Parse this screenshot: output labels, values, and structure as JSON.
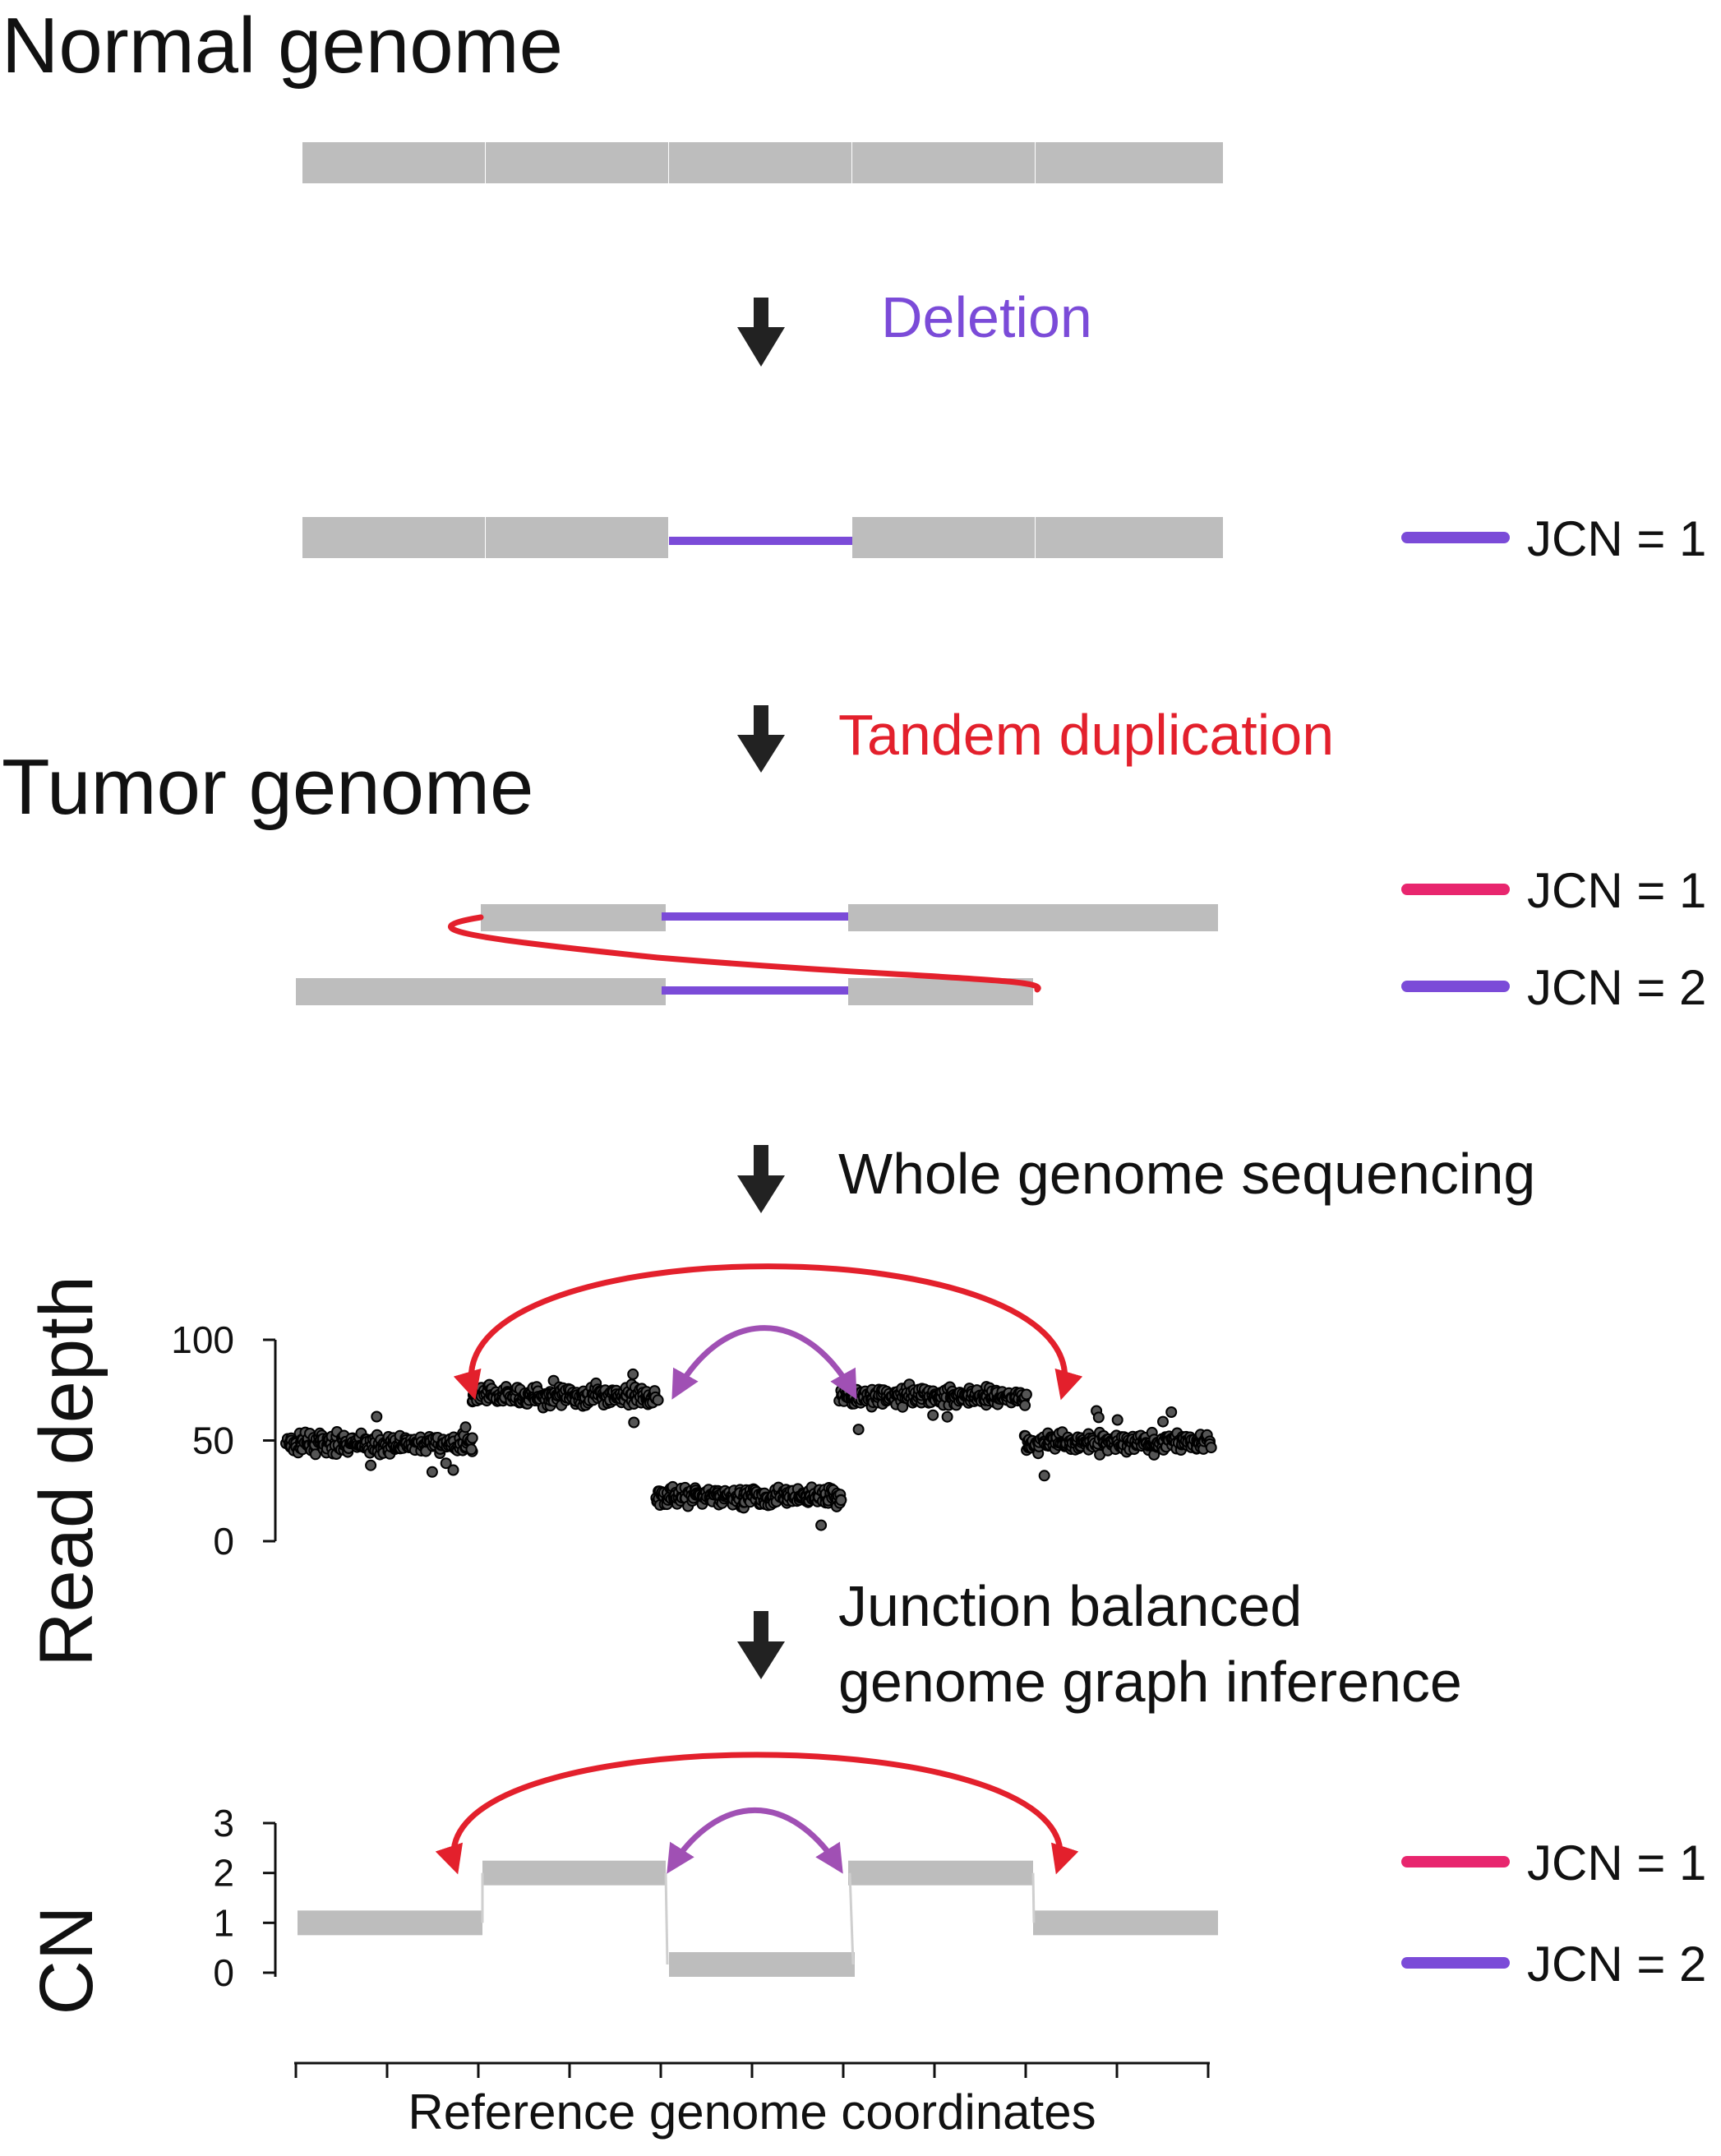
{
  "headings": {
    "normal": "Normal genome",
    "tumor": "Tumor genome"
  },
  "steps": {
    "deletion": "Deletion",
    "tandem_duplication": "Tandem duplication",
    "sequencing": "Whole genome sequencing",
    "inference_line1": "Junction balanced",
    "inference_line2": "genome graph inference"
  },
  "legends": {
    "deleted": [
      {
        "label": "JCN = 1",
        "color": "#7b4bd8"
      }
    ],
    "tumor": [
      {
        "label": "JCN = 1",
        "color": "#e8266e"
      },
      {
        "label": "JCN = 2",
        "color": "#7b4bd8"
      }
    ],
    "cn": [
      {
        "label": "JCN = 1",
        "color": "#e8266e"
      },
      {
        "label": "JCN = 2",
        "color": "#7b4bd8"
      }
    ]
  },
  "colors": {
    "segment": "#bdbdbd",
    "deletion": "#7b4bd8",
    "duplication_junction": "#e3202c",
    "deletion_junction_arc": "#a050b4",
    "points": "#1a1a1a",
    "step_deletion": "#7b4bd8",
    "step_duplication": "#e3202c"
  },
  "icons": {
    "step_arrow": "down-arrow-icon"
  },
  "chart_data": [
    {
      "type": "scatter",
      "title": "",
      "xlabel": "",
      "ylabel": "Read depth",
      "ylim": [
        0,
        100
      ],
      "yticks": [
        "0",
        "50",
        "100"
      ],
      "segments": [
        {
          "x": [
            0,
            1
          ],
          "mean": 48
        },
        {
          "x": [
            1,
            2
          ],
          "mean": 72
        },
        {
          "x": [
            2,
            3
          ],
          "mean": 22
        },
        {
          "x": [
            3,
            4
          ],
          "mean": 72
        },
        {
          "x": [
            4,
            5
          ],
          "mean": 49
        }
      ],
      "junctions": [
        {
          "from": 1,
          "to": 4,
          "copy_number": 1,
          "color": "#e3202c"
        },
        {
          "from": 2,
          "to": 3,
          "copy_number": 2,
          "color": "#a050b4"
        }
      ]
    },
    {
      "type": "line",
      "title": "",
      "xlabel": "Reference genome coordinates",
      "ylabel": "CN",
      "ylim": [
        0,
        3
      ],
      "yticks": [
        "0",
        "1",
        "2",
        "3"
      ],
      "segments": [
        {
          "x": [
            0,
            1
          ],
          "cn": 1
        },
        {
          "x": [
            1,
            2
          ],
          "cn": 2
        },
        {
          "x": [
            2,
            3
          ],
          "cn": 0
        },
        {
          "x": [
            3,
            4
          ],
          "cn": 2
        },
        {
          "x": [
            4,
            5
          ],
          "cn": 1
        }
      ],
      "junctions": [
        {
          "from": 1,
          "to": 4,
          "copy_number": 1,
          "color": "#e3202c"
        },
        {
          "from": 2,
          "to": 3,
          "copy_number": 2,
          "color": "#a050b4"
        }
      ]
    }
  ]
}
